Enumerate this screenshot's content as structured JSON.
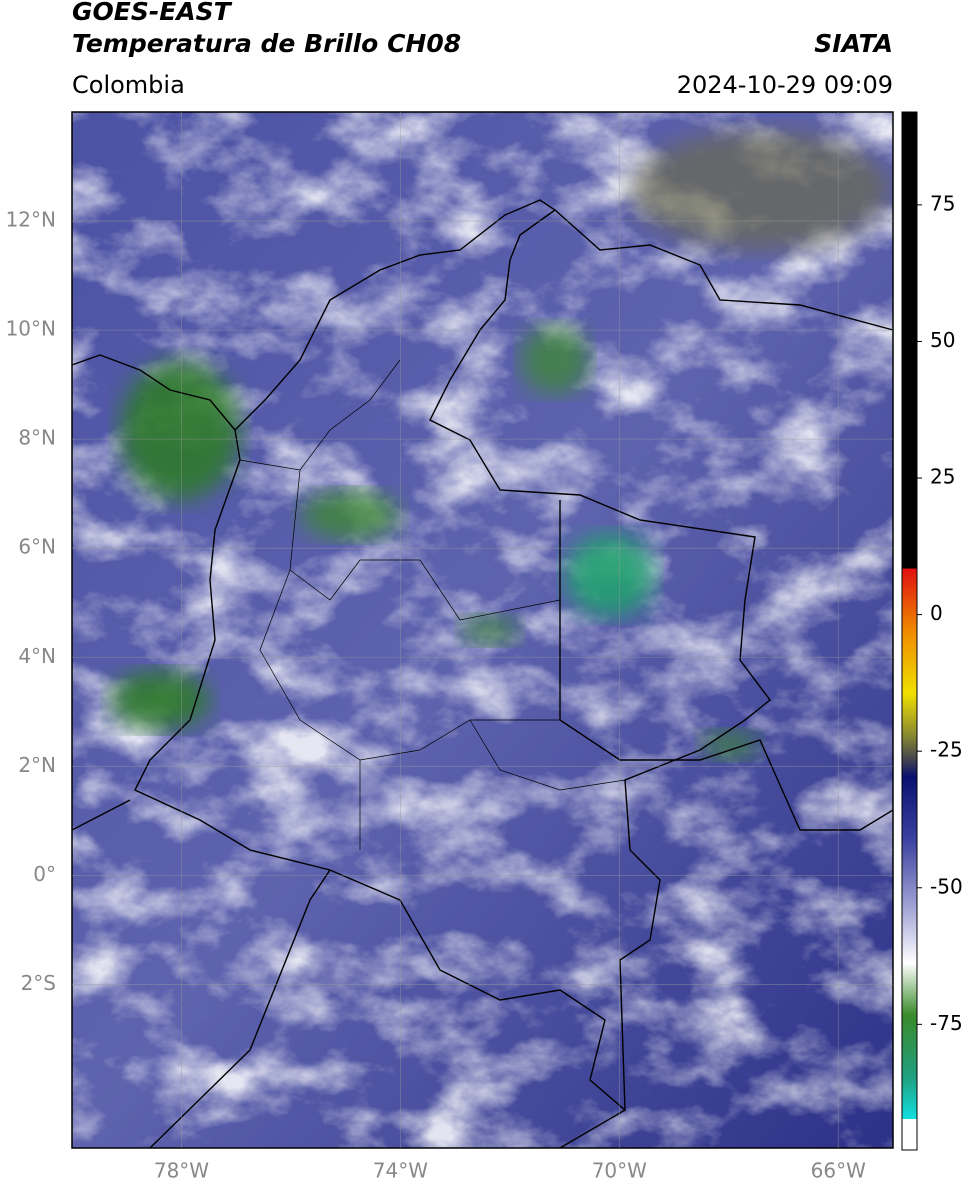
{
  "header": {
    "title": "GOES-EAST",
    "subtitle": "Temperatura de Brillo CH08",
    "source": "SIATA",
    "region": "Colombia",
    "datetime": "2024-10-29 09:09"
  },
  "map": {
    "lon_range": [
      -80,
      -65
    ],
    "lat_range": [
      -5,
      14
    ],
    "lon_ticks": [
      {
        "value": -78,
        "label": "78°W"
      },
      {
        "value": -74,
        "label": "74°W"
      },
      {
        "value": -70,
        "label": "70°W"
      },
      {
        "value": -66,
        "label": "66°W"
      }
    ],
    "lat_ticks": [
      {
        "value": 12,
        "label": "12°N"
      },
      {
        "value": 10,
        "label": "10°N"
      },
      {
        "value": 8,
        "label": "8°N"
      },
      {
        "value": 6,
        "label": "6°N"
      },
      {
        "value": 4,
        "label": "4°N"
      },
      {
        "value": 2,
        "label": "2°N"
      },
      {
        "value": 0,
        "label": "0°"
      },
      {
        "value": -2,
        "label": "2°S"
      }
    ],
    "grid": true
  },
  "colorbar": {
    "range": [
      -98,
      92
    ],
    "ticks": [
      75,
      50,
      25,
      0,
      -25,
      -50,
      -75
    ]
  }
}
